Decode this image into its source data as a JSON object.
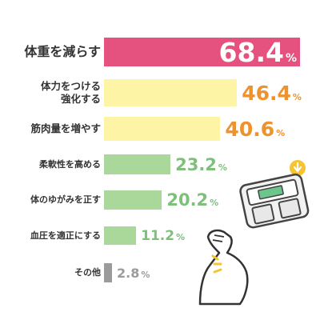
{
  "chart_data": {
    "type": "bar",
    "orientation": "horizontal",
    "categories": [
      "体重を減らす",
      "体力をつける強化する",
      "筋肉量を増やす",
      "柔軟性を高める",
      "体のゆがみを正す",
      "血圧を適正にする",
      "その他"
    ],
    "label_lines": [
      [
        "体重を減らす"
      ],
      [
        "体力をつける",
        "強化する"
      ],
      [
        "筋肉量を増やす"
      ],
      [
        "柔軟性を高める"
      ],
      [
        "体のゆがみを正す"
      ],
      [
        "血圧を適正にする"
      ],
      [
        "その他"
      ]
    ],
    "values": [
      68.4,
      46.4,
      40.6,
      23.2,
      20.2,
      11.2,
      2.8
    ],
    "value_labels": [
      "68.4",
      "46.4",
      "40.6",
      "23.2",
      "20.2",
      "11.2",
      "2.8"
    ],
    "unit": "%",
    "colors": {
      "pink": "#e6527f",
      "yellow_fill": "#fdf4a6",
      "yellow_text": "#ee922d",
      "green_fill": "#a9d89a",
      "green_text": "#7cc07a",
      "gray_fill": "#9b9b9b",
      "label_text": "#333333"
    },
    "bar_color_keys": [
      "pink",
      "yellow",
      "yellow",
      "green",
      "green",
      "green",
      "gray"
    ],
    "xlim": [
      0,
      68.4
    ],
    "grid": false,
    "legend": "none",
    "decorations": [
      "body-composition-scale-icon",
      "flexed-arm-icon"
    ]
  }
}
